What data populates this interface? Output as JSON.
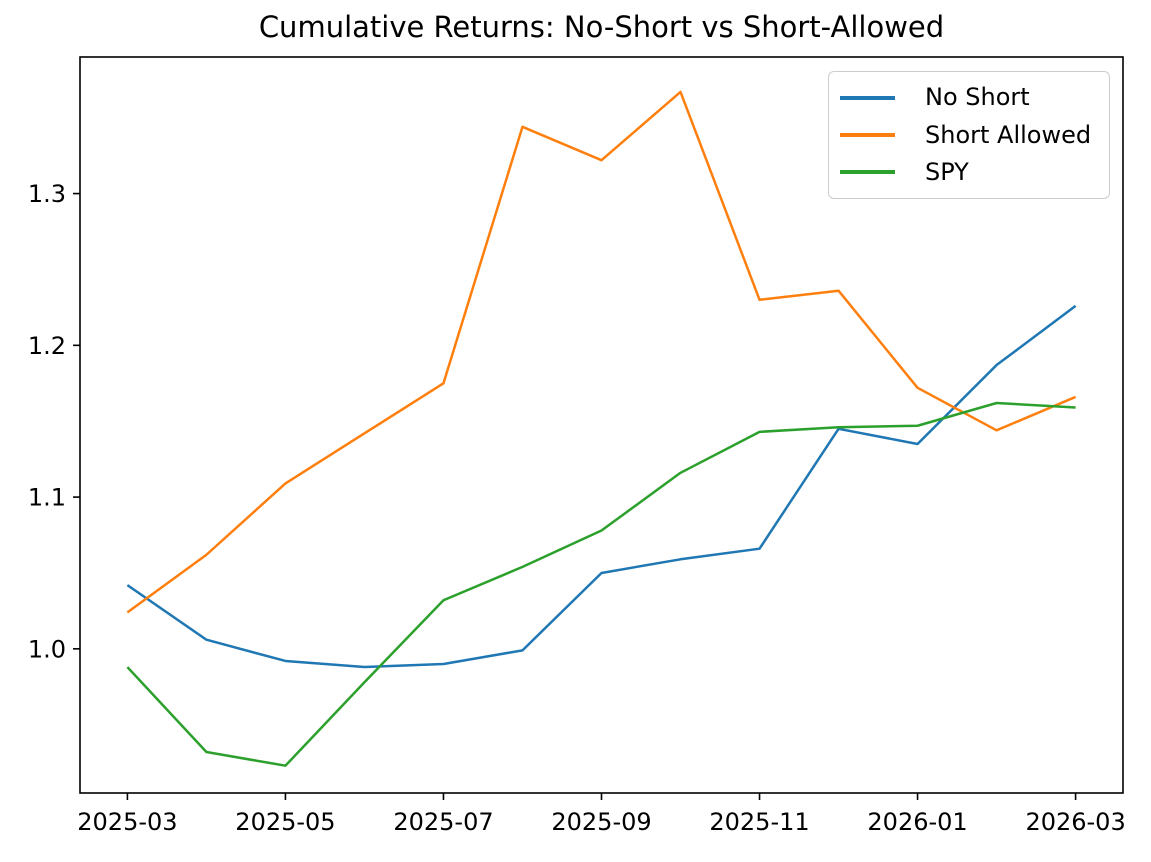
{
  "figure": {
    "title": "Cumulative Returns: No-Short vs Short-Allowed",
    "background_color": "#ffffff",
    "axis_color": "#000000"
  },
  "chart_data": {
    "type": "line",
    "title": "Cumulative Returns: No-Short vs Short-Allowed",
    "xlabel": "",
    "ylabel": "",
    "grid": false,
    "x": [
      "2025-03",
      "2025-04",
      "2025-05",
      "2025-06",
      "2025-07",
      "2025-08",
      "2025-09",
      "2025-10",
      "2025-11",
      "2025-12",
      "2026-01",
      "2026-02",
      "2026-03"
    ],
    "series": [
      {
        "name": "No Short",
        "color": "#1f77b4",
        "values": [
          1.042,
          1.006,
          0.992,
          0.988,
          0.99,
          0.999,
          1.05,
          1.059,
          1.066,
          1.145,
          1.135,
          1.187,
          1.226
        ]
      },
      {
        "name": "Short Allowed",
        "color": "#ff7f0e",
        "values": [
          1.024,
          1.062,
          1.109,
          1.142,
          1.175,
          1.344,
          1.322,
          1.367,
          1.23,
          1.236,
          1.172,
          1.144,
          1.166
        ]
      },
      {
        "name": "SPY",
        "color": "#2ca02c",
        "values": [
          0.988,
          0.932,
          0.923,
          0.978,
          1.032,
          1.054,
          1.078,
          1.116,
          1.143,
          1.146,
          1.147,
          1.162,
          1.159
        ]
      }
    ],
    "x_ticks": [
      0,
      2,
      4,
      6,
      8,
      10,
      12
    ],
    "x_tick_labels": [
      "2025-03",
      "2025-05",
      "2025-07",
      "2025-09",
      "2025-11",
      "2026-01",
      "2026-03"
    ],
    "y_ticks": [
      1.0,
      1.1,
      1.2,
      1.3
    ],
    "y_tick_labels": [
      "1.0",
      "1.1",
      "1.2",
      "1.3"
    ],
    "xlim": [
      -0.6,
      12.6
    ],
    "ylim": [
      0.905,
      1.39
    ],
    "legend_position": "upper right"
  }
}
